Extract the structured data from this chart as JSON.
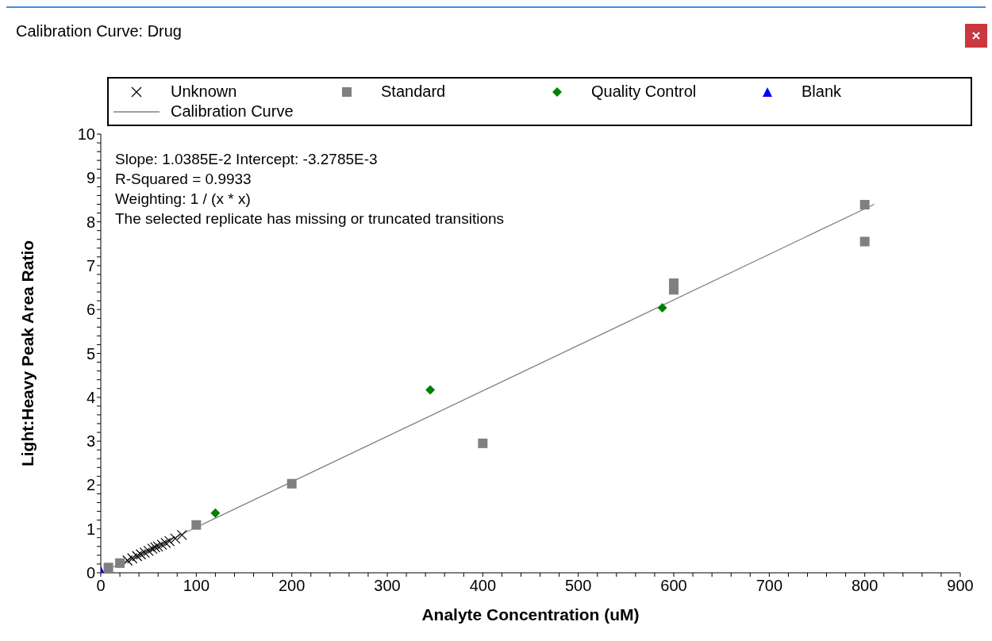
{
  "chart_data": {
    "type": "scatter",
    "title": "Calibration Curve: Drug",
    "xlabel": "Analyte Concentration (uM)",
    "ylabel": "Light:Heavy Peak Area Ratio",
    "annotations": [
      "Slope: 1.0385E-2 Intercept: -3.2785E-3",
      "R-Squared = 0.9933",
      "Weighting: 1 / (x * x)",
      "The selected replicate has missing or truncated transitions"
    ],
    "legend": "top",
    "grid": false,
    "xlim": [
      0,
      900
    ],
    "ylim": [
      0,
      10
    ],
    "xticks": [
      0,
      {
        "value": 20,
        "label": null
      },
      {
        "value": 40,
        "label": null
      },
      {
        "value": 60,
        "label": null
      },
      {
        "value": 80,
        "label": null
      },
      100,
      {
        "value": 120,
        "label": null
      },
      {
        "value": 140,
        "label": null
      },
      {
        "value": 160,
        "label": null
      },
      {
        "value": 180,
        "label": null
      },
      200,
      {
        "value": 220,
        "label": null
      },
      {
        "value": 240,
        "label": null
      },
      {
        "value": 260,
        "label": null
      },
      {
        "value": 280,
        "label": null
      },
      300,
      {
        "value": 320,
        "label": null
      },
      {
        "value": 340,
        "label": null
      },
      {
        "value": 360,
        "label": null
      },
      {
        "value": 380,
        "label": null
      },
      400,
      {
        "value": 420,
        "label": null
      },
      {
        "value": 440,
        "label": null
      },
      {
        "value": 460,
        "label": null
      },
      {
        "value": 480,
        "label": null
      },
      500,
      {
        "value": 520,
        "label": null
      },
      {
        "value": 540,
        "label": null
      },
      {
        "value": 560,
        "label": null
      },
      {
        "value": 580,
        "label": null
      },
      600,
      {
        "value": 620,
        "label": null
      },
      {
        "value": 640,
        "label": null
      },
      {
        "value": 660,
        "label": null
      },
      {
        "value": 680,
        "label": null
      },
      700,
      {
        "value": 720,
        "label": null
      },
      {
        "value": 740,
        "label": null
      },
      {
        "value": 760,
        "label": null
      },
      {
        "value": 780,
        "label": null
      },
      800,
      {
        "value": 820,
        "label": null
      },
      {
        "value": 840,
        "label": null
      },
      {
        "value": 860,
        "label": null
      },
      {
        "value": 880,
        "label": null
      },
      900
    ],
    "yticks": [
      0,
      {
        "value": 0.2,
        "label": null
      },
      {
        "value": 0.4,
        "label": null
      },
      {
        "value": 0.6,
        "label": null
      },
      {
        "value": 0.8,
        "label": null
      },
      1,
      {
        "value": 1.2,
        "label": null
      },
      {
        "value": 1.4,
        "label": null
      },
      {
        "value": 1.6,
        "label": null
      },
      {
        "value": 1.8,
        "label": null
      },
      2,
      {
        "value": 2.2,
        "label": null
      },
      {
        "value": 2.4,
        "label": null
      },
      {
        "value": 2.6,
        "label": null
      },
      {
        "value": 2.8,
        "label": null
      },
      3,
      {
        "value": 3.2,
        "label": null
      },
      {
        "value": 3.4,
        "label": null
      },
      {
        "value": 3.6,
        "label": null
      },
      {
        "value": 3.8,
        "label": null
      },
      4,
      {
        "value": 4.2,
        "label": null
      },
      {
        "value": 4.4,
        "label": null
      },
      {
        "value": 4.6,
        "label": null
      },
      {
        "value": 4.8,
        "label": null
      },
      5,
      {
        "value": 5.2,
        "label": null
      },
      {
        "value": 5.4,
        "label": null
      },
      {
        "value": 5.6,
        "label": null
      },
      {
        "value": 5.8,
        "label": null
      },
      6,
      {
        "value": 6.2,
        "label": null
      },
      {
        "value": 6.4,
        "label": null
      },
      {
        "value": 6.6,
        "label": null
      },
      {
        "value": 6.8,
        "label": null
      },
      7,
      {
        "value": 7.2,
        "label": null
      },
      {
        "value": 7.4,
        "label": null
      },
      {
        "value": 7.6,
        "label": null
      },
      {
        "value": 7.8,
        "label": null
      },
      8,
      {
        "value": 8.2,
        "label": null
      },
      {
        "value": 8.4,
        "label": null
      },
      {
        "value": 8.6,
        "label": null
      },
      {
        "value": 8.8,
        "label": null
      },
      9,
      {
        "value": 9.2,
        "label": null
      },
      {
        "value": 9.4,
        "label": null
      },
      {
        "value": 9.6,
        "label": null
      },
      {
        "value": 9.8,
        "label": null
      },
      10
    ],
    "series": [
      {
        "name": "Unknown",
        "marker": "cross",
        "color": "#000000",
        "x": [
          28,
          33,
          38,
          42,
          46,
          50,
          54,
          57,
          60,
          64,
          68,
          72,
          78,
          85
        ],
        "values": [
          0.28,
          0.33,
          0.38,
          0.42,
          0.46,
          0.5,
          0.55,
          0.58,
          0.6,
          0.64,
          0.68,
          0.72,
          0.78,
          0.86
        ]
      },
      {
        "name": "Standard",
        "marker": "square",
        "color": "#808080",
        "x": [
          8,
          20,
          100,
          200,
          400,
          600,
          600,
          800,
          800
        ],
        "values": [
          0.12,
          0.22,
          1.09,
          2.03,
          2.95,
          6.45,
          6.6,
          8.39,
          7.55
        ]
      },
      {
        "name": "Quality Control",
        "marker": "diamond",
        "color": "#008000",
        "x": [
          120,
          345,
          588
        ],
        "values": [
          1.36,
          4.17,
          6.04
        ]
      },
      {
        "name": "Blank",
        "marker": "triangle",
        "color": "#0000ff",
        "x": [
          0
        ],
        "values": [
          0.05
        ]
      },
      {
        "name": "Calibration Curve",
        "type": "line",
        "marker": "none",
        "line_style": "solid",
        "color": "#808080",
        "x": [
          5,
          810
        ],
        "values": [
          0.05,
          8.4
        ]
      }
    ]
  }
}
